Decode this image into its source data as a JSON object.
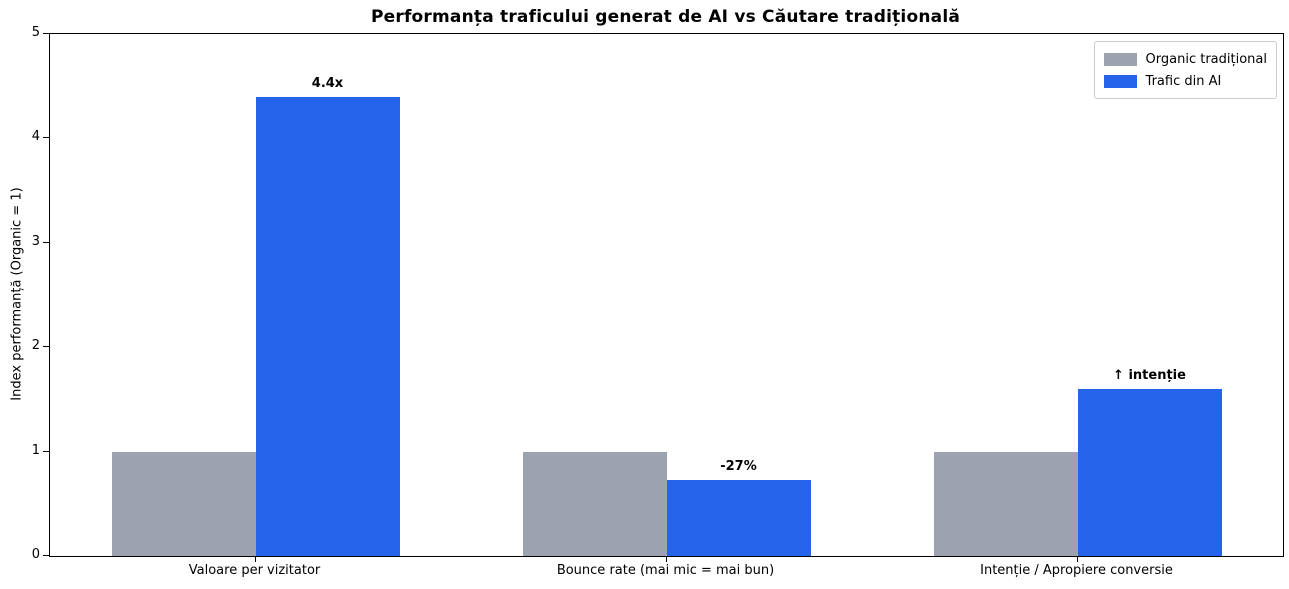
{
  "chart_data": {
    "type": "bar",
    "title": "Performanța traficului generat de AI vs Căutare tradițională",
    "ylabel": "Index performanță (Organic = 1)",
    "xlabel": "",
    "categories": [
      "Valoare per vizitator",
      "Bounce rate (mai mic = mai bun)",
      "Intenție / Apropiere conversie"
    ],
    "series": [
      {
        "name": "Organic tradițional",
        "color": "#9CA3AF",
        "values": [
          1.0,
          1.0,
          1.0
        ]
      },
      {
        "name": "Trafic din AI",
        "color": "#2563EB",
        "values": [
          4.4,
          0.73,
          1.6
        ]
      }
    ],
    "annotations": [
      {
        "group": 0,
        "series": 1,
        "text": "4.4x"
      },
      {
        "group": 1,
        "series": 1,
        "text": "-27%"
      },
      {
        "group": 2,
        "series": 1,
        "text": "↑ intenție"
      }
    ],
    "yticks": [
      0,
      1,
      2,
      3,
      4,
      5
    ],
    "ylim": [
      0,
      5
    ],
    "legend_position": "upper right",
    "grid": false,
    "axis_color": "#000000",
    "background_color": "#ffffff"
  }
}
